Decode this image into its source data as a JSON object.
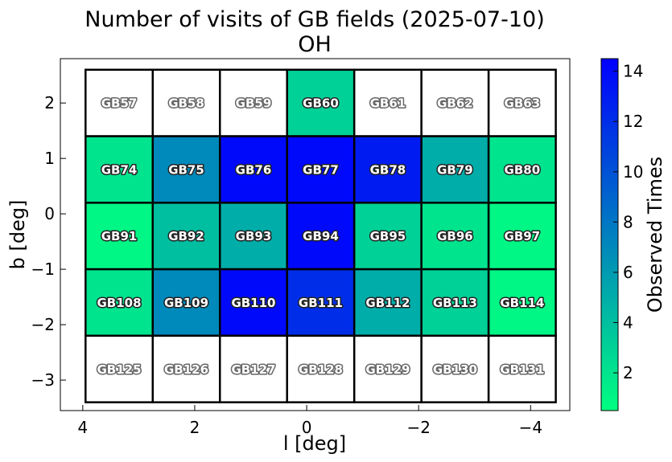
{
  "chart_data": {
    "type": "heatmap",
    "title": "Number of visits of GB fields (2025-07-10)",
    "subtitle": "OH",
    "xlabel": "l [deg]",
    "ylabel": "b [deg]",
    "xlim": [
      4.4,
      -4.7
    ],
    "ylim": [
      -3.55,
      2.8
    ],
    "x_ticks": [
      4,
      2,
      0,
      -2,
      -4
    ],
    "x_tick_labels": [
      "4",
      "2",
      "0",
      "−2",
      "−4"
    ],
    "y_ticks": [
      2,
      1,
      0,
      -1,
      -2,
      -3
    ],
    "y_tick_labels": [
      "2",
      "1",
      "0",
      "−1",
      "−2",
      "−3"
    ],
    "grid": false,
    "cell_l_edges": [
      3.95,
      2.75,
      1.55,
      0.35,
      -0.85,
      -2.05,
      -3.25,
      -4.45
    ],
    "cell_b_edges": [
      2.6,
      1.4,
      0.2,
      -1.0,
      -2.2,
      -3.4
    ],
    "fields": [
      [
        "GB57",
        "GB58",
        "GB59",
        "GB60",
        "GB61",
        "GB62",
        "GB63"
      ],
      [
        "GB74",
        "GB75",
        "GB76",
        "GB77",
        "GB78",
        "GB79",
        "GB80"
      ],
      [
        "GB91",
        "GB92",
        "GB93",
        "GB94",
        "GB95",
        "GB96",
        "GB97"
      ],
      [
        "GB108",
        "GB109",
        "GB110",
        "GB111",
        "GB112",
        "GB113",
        "GB114"
      ],
      [
        "GB125",
        "GB126",
        "GB127",
        "GB128",
        "GB129",
        "GB130",
        "GB131"
      ]
    ],
    "values": [
      [
        0,
        0,
        0,
        3,
        0,
        0,
        0
      ],
      [
        2,
        7,
        14,
        14,
        13,
        5,
        2
      ],
      [
        1,
        4,
        5,
        14,
        3,
        2,
        1
      ],
      [
        2,
        7,
        14,
        12,
        5,
        3,
        1
      ],
      [
        0,
        0,
        0,
        0,
        0,
        0,
        0
      ]
    ],
    "colorbar": {
      "label": "Observed Times",
      "min": 0.5,
      "max": 14.5,
      "ticks": [
        2,
        4,
        6,
        8,
        10,
        12,
        14
      ],
      "tick_labels": [
        "2",
        "4",
        "6",
        "8",
        "10",
        "12",
        "14"
      ],
      "colormap": "winter_r",
      "color_low": "#00ff80",
      "color_high": "#0000ff"
    },
    "unobserved_color": "#ffffff"
  }
}
